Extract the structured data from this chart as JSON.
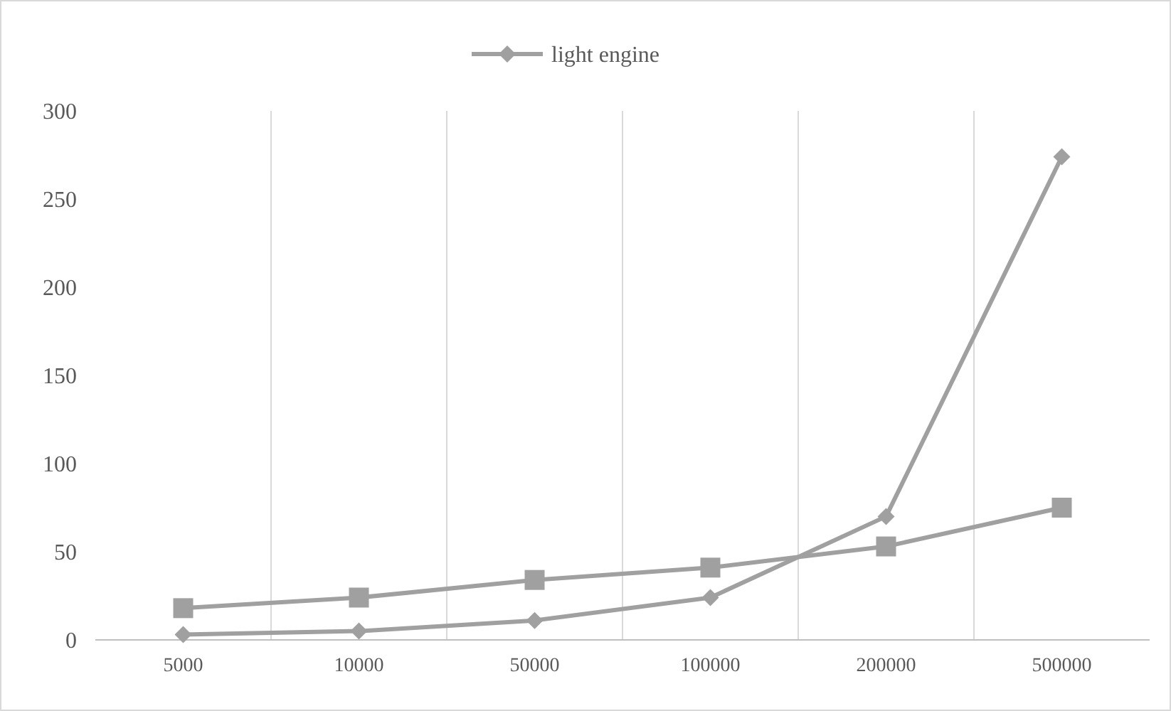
{
  "chart_data": {
    "type": "line",
    "categories": [
      "5000",
      "10000",
      "50000",
      "100000",
      "200000",
      "500000"
    ],
    "series": [
      {
        "name": "light engine",
        "color": "#a0a0a0",
        "marker": "diamond",
        "values": [
          3,
          5,
          11,
          24,
          70,
          274
        ]
      },
      {
        "color": "#a0a0a0",
        "marker": "square",
        "values": [
          18,
          24,
          34,
          41,
          53,
          75
        ]
      }
    ],
    "ylim": [
      0,
      300
    ],
    "yticks": [
      0,
      50,
      100,
      150,
      200,
      250,
      300
    ],
    "grid": "x",
    "legend": "top",
    "line_style": "solid"
  }
}
